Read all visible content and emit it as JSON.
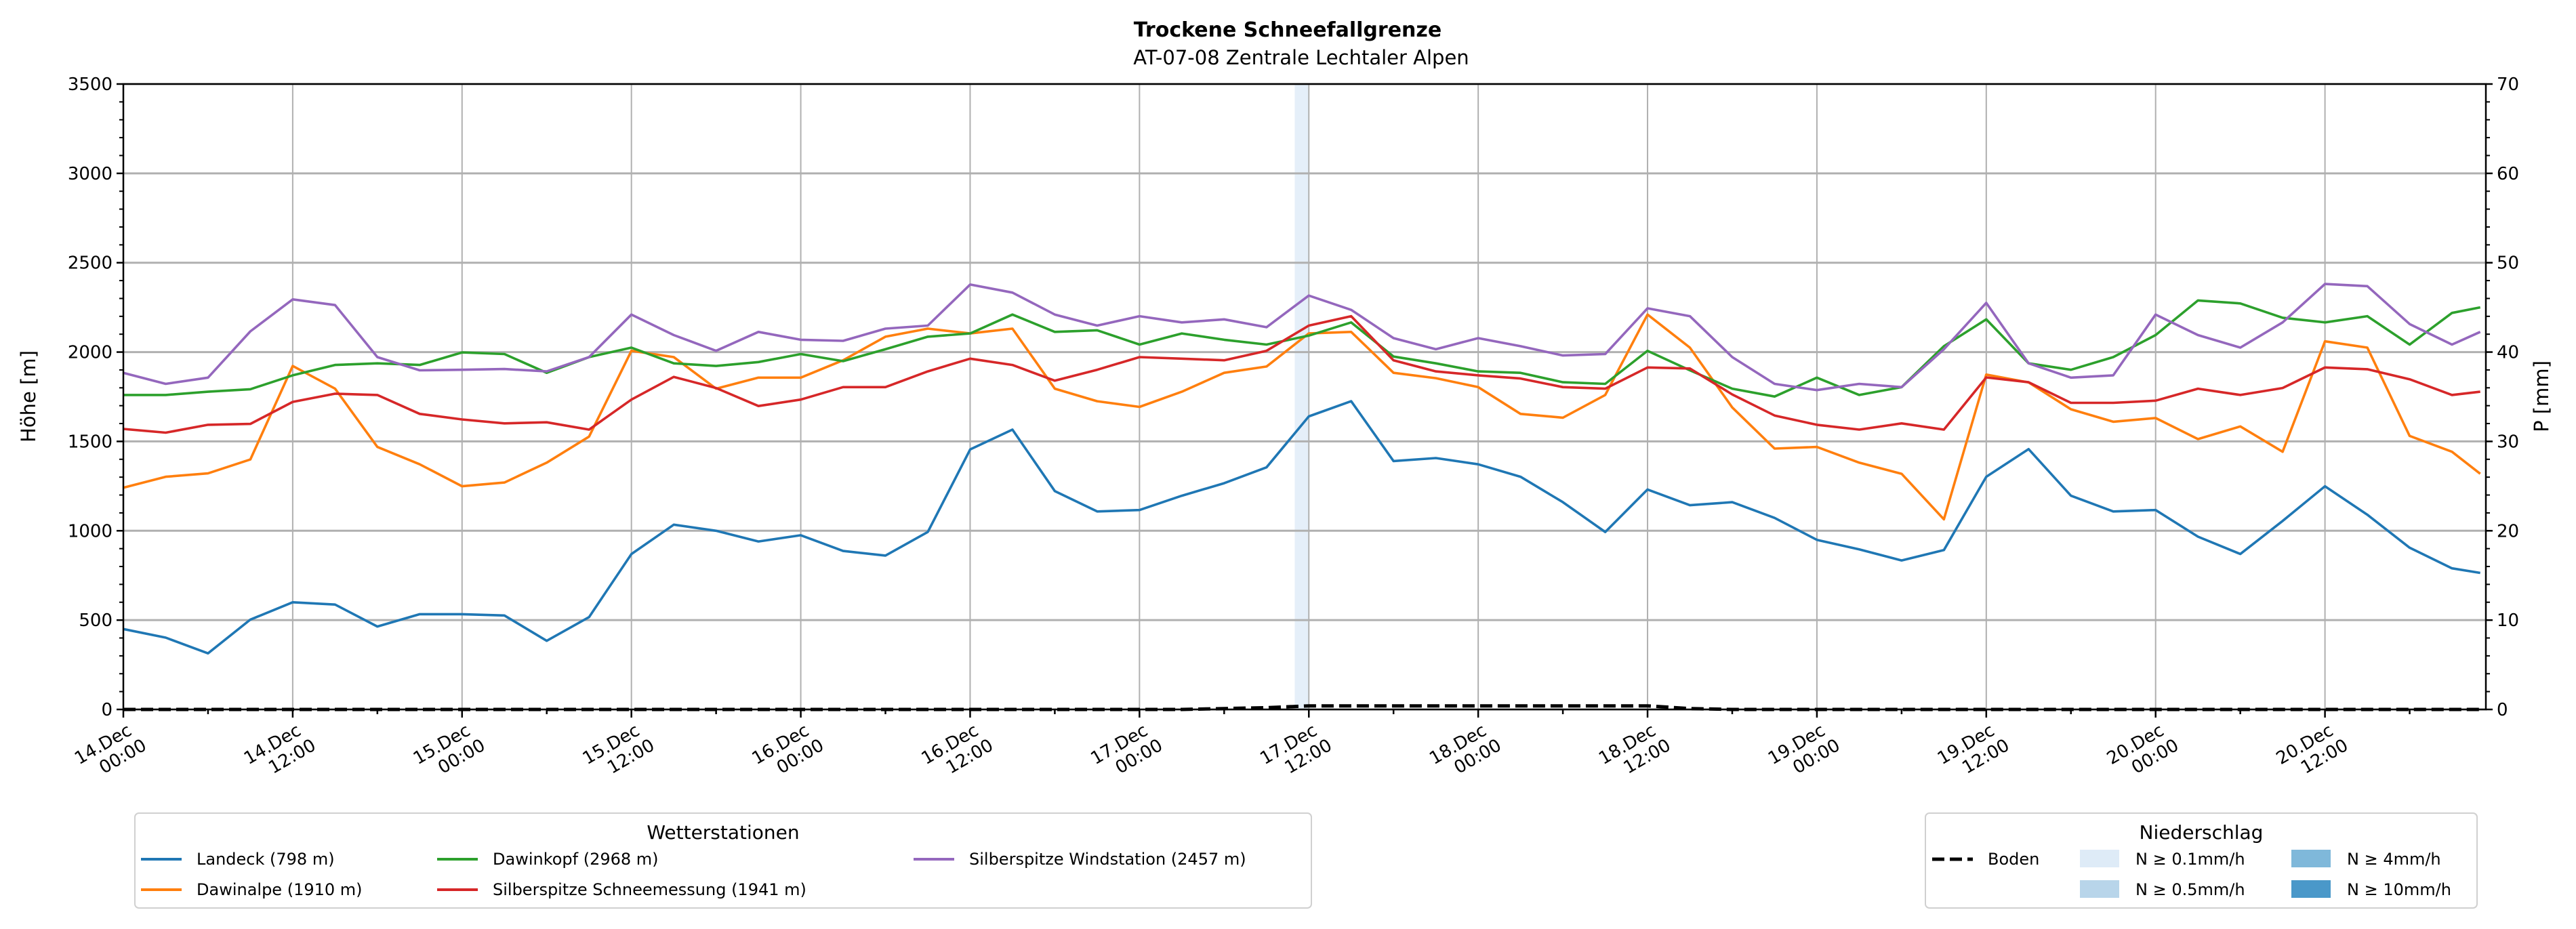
{
  "chart_data": {
    "type": "line",
    "title": "Trockene Schneefallgrenze",
    "subtitle": "AT-07-08 Zentrale Lechtaler Alpen",
    "ylabel": "Höhe [m]",
    "y2label": "P [mm]",
    "ylim": [
      0,
      3500
    ],
    "y2lim": [
      0,
      70
    ],
    "xlim_hours": [
      0,
      167.4
    ],
    "grid": true,
    "yticks": [
      0,
      500,
      1000,
      1500,
      2000,
      2500,
      3000,
      3500
    ],
    "y2ticks": [
      0,
      10,
      20,
      30,
      40,
      50,
      60,
      70
    ],
    "xticks": [
      {
        "h": 0,
        "l1": "14.Dec",
        "l2": "00:00"
      },
      {
        "h": 12,
        "l1": "14.Dec",
        "l2": "12:00"
      },
      {
        "h": 24,
        "l1": "15.Dec",
        "l2": "00:00"
      },
      {
        "h": 36,
        "l1": "15.Dec",
        "l2": "12:00"
      },
      {
        "h": 48,
        "l1": "16.Dec",
        "l2": "00:00"
      },
      {
        "h": 60,
        "l1": "16.Dec",
        "l2": "12:00"
      },
      {
        "h": 72,
        "l1": "17.Dec",
        "l2": "00:00"
      },
      {
        "h": 84,
        "l1": "17.Dec",
        "l2": "12:00"
      },
      {
        "h": 96,
        "l1": "18.Dec",
        "l2": "00:00"
      },
      {
        "h": 108,
        "l1": "18.Dec",
        "l2": "12:00"
      },
      {
        "h": 120,
        "l1": "19.Dec",
        "l2": "00:00"
      },
      {
        "h": 132,
        "l1": "19.Dec",
        "l2": "12:00"
      },
      {
        "h": 144,
        "l1": "20.Dec",
        "l2": "00:00"
      },
      {
        "h": 156,
        "l1": "20.Dec",
        "l2": "12:00"
      }
    ],
    "x_hours": [
      0,
      3,
      6,
      9,
      12,
      15,
      18,
      21,
      24,
      27,
      30,
      33,
      36,
      39,
      42,
      45,
      48,
      51,
      54,
      57,
      60,
      63,
      66,
      69,
      72,
      75,
      78,
      81,
      84,
      87,
      90,
      93,
      96,
      99,
      102,
      105,
      108,
      111,
      114,
      117,
      120,
      123,
      126,
      129,
      132,
      135,
      138,
      141,
      144,
      147,
      150,
      153,
      156,
      159,
      162,
      165,
      167
    ],
    "series": [
      {
        "name": "Landeck (798 m)",
        "color": "#1f77b4",
        "values": [
          450,
          402,
          314,
          503,
          600,
          587,
          464,
          533,
          533,
          526,
          384,
          517,
          870,
          1034,
          1000,
          940,
          975,
          887,
          861,
          993,
          1455,
          1566,
          1222,
          1108,
          1116,
          1196,
          1266,
          1355,
          1640,
          1725,
          1390,
          1407,
          1372,
          1302,
          1160,
          993,
          1231,
          1143,
          1160,
          1072,
          949,
          896,
          834,
          892,
          1302,
          1457,
          1196,
          1108,
          1116,
          967,
          870,
          1055,
          1249,
          1090,
          905,
          790,
          764
        ]
      },
      {
        "name": "Dawinalpe (1910 m)",
        "color": "#ff7f0e",
        "values": [
          1241,
          1302,
          1321,
          1399,
          1922,
          1795,
          1469,
          1372,
          1249,
          1270,
          1381,
          1527,
          2007,
          1972,
          1795,
          1857,
          1857,
          1954,
          2086,
          2131,
          2104,
          2131,
          1795,
          1725,
          1693,
          1778,
          1884,
          1919,
          2104,
          2113,
          1884,
          1854,
          1804,
          1654,
          1633,
          1760,
          2210,
          2025,
          1690,
          1460,
          1469,
          1381,
          1319,
          1064,
          1874,
          1830,
          1680,
          1610,
          1631,
          1513,
          1584,
          1442,
          2060,
          2025,
          1531,
          1442,
          1319
        ]
      },
      {
        "name": "Dawinkopf (2968 m)",
        "color": "#2ca02c",
        "values": [
          1760,
          1760,
          1778,
          1792,
          1870,
          1928,
          1937,
          1928,
          1998,
          1989,
          1884,
          1972,
          2025,
          1937,
          1922,
          1944,
          1989,
          1949,
          2016,
          2086,
          2104,
          2210,
          2113,
          2122,
          2042,
          2104,
          2069,
          2042,
          2092,
          2166,
          1975,
          1937,
          1892,
          1884,
          1831,
          1822,
          2007,
          1898,
          1795,
          1751,
          1857,
          1760,
          1804,
          2033,
          2183,
          1937,
          1901,
          1972,
          2095,
          2289,
          2272,
          2192,
          2166,
          2201,
          2042,
          2219,
          2250
        ]
      },
      {
        "name": "Silberspitze Schneemessung (1941 m)",
        "color": "#d62728",
        "values": [
          1570,
          1549,
          1593,
          1598,
          1721,
          1767,
          1760,
          1654,
          1623,
          1601,
          1607,
          1566,
          1734,
          1861,
          1799,
          1698,
          1734,
          1804,
          1804,
          1892,
          1963,
          1928,
          1840,
          1901,
          1972,
          1963,
          1954,
          2007,
          2148,
          2201,
          1954,
          1892,
          1870,
          1852,
          1804,
          1795,
          1914,
          1908,
          1763,
          1645,
          1593,
          1566,
          1601,
          1566,
          1858,
          1831,
          1716,
          1716,
          1728,
          1795,
          1760,
          1799,
          1914,
          1904,
          1848,
          1760,
          1778
        ]
      },
      {
        "name": "Silberspitze Windstation (2457 m)",
        "color": "#9467bd",
        "values": [
          1884,
          1822,
          1857,
          2116,
          2295,
          2263,
          1972,
          1898,
          1901,
          1905,
          1892,
          1972,
          2210,
          2095,
          2007,
          2113,
          2069,
          2063,
          2131,
          2148,
          2378,
          2333,
          2210,
          2148,
          2201,
          2166,
          2183,
          2139,
          2316,
          2236,
          2078,
          2016,
          2078,
          2033,
          1981,
          1989,
          2245,
          2201,
          1972,
          1822,
          1787,
          1822,
          1804,
          2016,
          2275,
          1937,
          1857,
          1870,
          2210,
          2095,
          2025,
          2166,
          2381,
          2369,
          2157,
          2042,
          2113
        ]
      }
    ],
    "precip_boden_mm": [
      0,
      0,
      0,
      0,
      0,
      0,
      0,
      0,
      0,
      0,
      0,
      0,
      0,
      0,
      0,
      0,
      0,
      0,
      0,
      0,
      0,
      0,
      0,
      0,
      0,
      0,
      0.1,
      0.2,
      0.4,
      0.4,
      0.4,
      0.4,
      0.4,
      0.4,
      0.4,
      0.4,
      0.4,
      0.1,
      0,
      0,
      0,
      0,
      0,
      0,
      0,
      0,
      0,
      0,
      0,
      0,
      0,
      0,
      0,
      0,
      0,
      0,
      0
    ],
    "precip_bands": [
      {
        "from_h": 83,
        "to_h": 84,
        "class": "N ≥ 0.1mm/h",
        "color": "#deebf7"
      }
    ],
    "legend_stations": {
      "title": "Wetterstationen",
      "placement": "bottom-left"
    },
    "legend_precip": {
      "title": "Niederschlag",
      "placement": "bottom-right",
      "boden": "Boden",
      "classes": [
        {
          "label": "N ≥ 0.1mm/h",
          "color": "#deebf7"
        },
        {
          "label": "N ≥ 0.5mm/h",
          "color": "#b8d5ea"
        },
        {
          "label": "N ≥ 4mm/h",
          "color": "#7fb8da"
        },
        {
          "label": "N ≥ 10mm/h",
          "color": "#4a98c9"
        }
      ]
    }
  }
}
